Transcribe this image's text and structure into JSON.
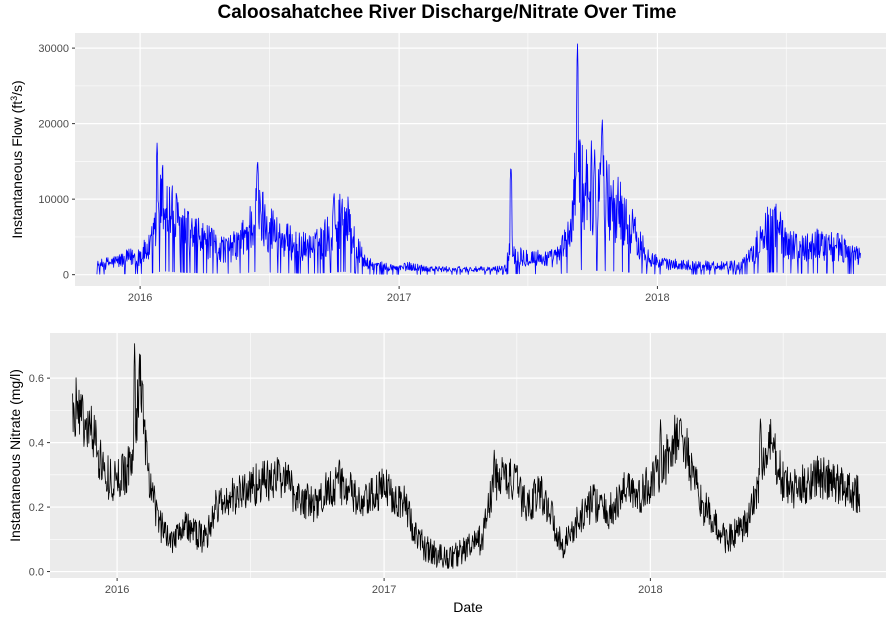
{
  "chart_data": [
    {
      "type": "line",
      "title": "Caloosahatchee River Discharge/Nitrate Over Time",
      "xlabel": "",
      "ylabel": "Instantaneous Flow (ft³/s)",
      "ylabel_parts": {
        "prefix": "Instantaneous Flow (ft",
        "sup": "3",
        "suffix": "/s)"
      },
      "xlim": [
        "2015-10-01",
        "2018-11-20"
      ],
      "ylim": [
        -1500,
        32000
      ],
      "x_ticks": [
        "2016",
        "2017",
        "2018"
      ],
      "y_ticks": [
        0,
        10000,
        20000,
        30000
      ],
      "y_tick_labels": [
        "0",
        "10000",
        "20000",
        "30000"
      ],
      "grid": true,
      "legend": "none",
      "color": "#0000ff",
      "series": [
        {
          "x": [
            "2015-11-01",
            "2015-11-15",
            "2015-12-01",
            "2015-12-15",
            "2016-01-01",
            "2016-01-15",
            "2016-01-25",
            "2016-02-01",
            "2016-02-15",
            "2016-03-01",
            "2016-03-15",
            "2016-04-01",
            "2016-04-15",
            "2016-05-01",
            "2016-05-15",
            "2016-06-01",
            "2016-06-15",
            "2016-07-01",
            "2016-07-15",
            "2016-08-01",
            "2016-08-15",
            "2016-09-01",
            "2016-09-15",
            "2016-10-01",
            "2016-10-15",
            "2016-11-01",
            "2016-11-15",
            "2016-12-01",
            "2016-12-15",
            "2017-01-01",
            "2017-01-15",
            "2017-02-01",
            "2017-02-15",
            "2017-03-01",
            "2017-03-15",
            "2017-04-01",
            "2017-04-15",
            "2017-05-01",
            "2017-05-15",
            "2017-06-01",
            "2017-06-08",
            "2017-06-15",
            "2017-07-01",
            "2017-07-15",
            "2017-08-01",
            "2017-08-15",
            "2017-09-01",
            "2017-09-10",
            "2017-09-15",
            "2017-10-01",
            "2017-10-15",
            "2017-11-01",
            "2017-11-15",
            "2017-12-01",
            "2017-12-15",
            "2018-01-01",
            "2018-01-15",
            "2018-02-01",
            "2018-02-15",
            "2018-03-01",
            "2018-03-15",
            "2018-04-01",
            "2018-04-15",
            "2018-05-01",
            "2018-05-15",
            "2018-06-01",
            "2018-06-15",
            "2018-07-01",
            "2018-07-15",
            "2018-08-01",
            "2018-08-15",
            "2018-09-01",
            "2018-09-15",
            "2018-10-01",
            "2018-10-15"
          ],
          "values": [
            1200,
            1500,
            1800,
            2200,
            2600,
            3500,
            6500,
            10000,
            8000,
            6000,
            5200,
            4500,
            3800,
            3400,
            3800,
            5500,
            8500,
            6500,
            5000,
            4200,
            3800,
            3500,
            4500,
            6200,
            8500,
            3800,
            1500,
            1200,
            1000,
            900,
            1100,
            900,
            800,
            700,
            700,
            700,
            700,
            650,
            700,
            900,
            4500,
            2500,
            2400,
            2200,
            2100,
            2500,
            6000,
            15000,
            13000,
            11500,
            10500,
            9500,
            7500,
            5000,
            3000,
            1600,
            1400,
            1300,
            1300,
            1200,
            1200,
            1200,
            1200,
            1400,
            2500,
            5800,
            7000,
            4500,
            3800,
            3500,
            4200,
            3800,
            3600,
            2800,
            2200
          ],
          "peak_dates": [
            "2016-01-25",
            "2016-06-15",
            "2016-10-01",
            "2017-06-08",
            "2017-09-10",
            "2017-10-15"
          ],
          "peak_values": [
            17500,
            15500,
            11000,
            14700,
            31000,
            21000
          ]
        }
      ]
    },
    {
      "type": "line",
      "title": "",
      "xlabel": "Date",
      "ylabel": "Instantaneous Nitrate (mg/l)",
      "xlim": [
        "2015-10-01",
        "2018-11-20"
      ],
      "ylim": [
        -0.02,
        0.74
      ],
      "x_ticks": [
        "2016",
        "2017",
        "2018"
      ],
      "y_ticks": [
        0.0,
        0.2,
        0.4,
        0.6
      ],
      "y_tick_labels": [
        "0.0",
        "0.2",
        "0.4",
        "0.6"
      ],
      "grid": true,
      "legend": "none",
      "color": "#000000",
      "series": [
        {
          "x": [
            "2015-11-01",
            "2015-11-08",
            "2015-11-15",
            "2015-12-01",
            "2015-12-15",
            "2016-01-01",
            "2016-01-15",
            "2016-01-25",
            "2016-02-01",
            "2016-02-15",
            "2016-03-01",
            "2016-03-15",
            "2016-04-01",
            "2016-04-15",
            "2016-05-01",
            "2016-05-15",
            "2016-06-01",
            "2016-06-15",
            "2016-07-01",
            "2016-07-15",
            "2016-08-01",
            "2016-08-15",
            "2016-09-01",
            "2016-09-15",
            "2016-10-01",
            "2016-10-15",
            "2016-11-01",
            "2016-11-15",
            "2016-12-01",
            "2016-12-15",
            "2017-01-01",
            "2017-01-15",
            "2017-02-01",
            "2017-02-15",
            "2017-03-01",
            "2017-03-15",
            "2017-04-01",
            "2017-04-15",
            "2017-05-01",
            "2017-05-15",
            "2017-06-01",
            "2017-06-15",
            "2017-07-01",
            "2017-07-15",
            "2017-08-01",
            "2017-08-15",
            "2017-09-01",
            "2017-09-15",
            "2017-10-01",
            "2017-10-15",
            "2017-11-01",
            "2017-11-15",
            "2017-12-01",
            "2017-12-15",
            "2018-01-01",
            "2018-01-15",
            "2018-02-01",
            "2018-02-15",
            "2018-03-01",
            "2018-03-15",
            "2018-04-01",
            "2018-04-15",
            "2018-05-01",
            "2018-05-15",
            "2018-06-01",
            "2018-06-15",
            "2018-07-01",
            "2018-07-15",
            "2018-08-01",
            "2018-08-15",
            "2018-09-01",
            "2018-09-15",
            "2018-10-01",
            "2018-10-15"
          ],
          "values": [
            0.48,
            0.52,
            0.47,
            0.42,
            0.3,
            0.28,
            0.32,
            0.38,
            0.62,
            0.25,
            0.14,
            0.1,
            0.15,
            0.12,
            0.1,
            0.2,
            0.22,
            0.24,
            0.26,
            0.28,
            0.28,
            0.3,
            0.24,
            0.22,
            0.2,
            0.26,
            0.28,
            0.25,
            0.2,
            0.23,
            0.26,
            0.24,
            0.2,
            0.1,
            0.07,
            0.05,
            0.04,
            0.06,
            0.08,
            0.1,
            0.28,
            0.3,
            0.27,
            0.2,
            0.25,
            0.2,
            0.08,
            0.12,
            0.18,
            0.22,
            0.18,
            0.2,
            0.28,
            0.22,
            0.28,
            0.3,
            0.4,
            0.42,
            0.28,
            0.2,
            0.14,
            0.1,
            0.12,
            0.15,
            0.3,
            0.4,
            0.28,
            0.25,
            0.27,
            0.3,
            0.28,
            0.27,
            0.26,
            0.24
          ],
          "peak_dates": [
            "2015-11-08",
            "2016-01-25",
            "2017-06-01",
            "2018-01-15",
            "2018-06-01"
          ],
          "peak_values": [
            0.55,
            0.71,
            0.38,
            0.48,
            0.49
          ]
        }
      ]
    }
  ]
}
